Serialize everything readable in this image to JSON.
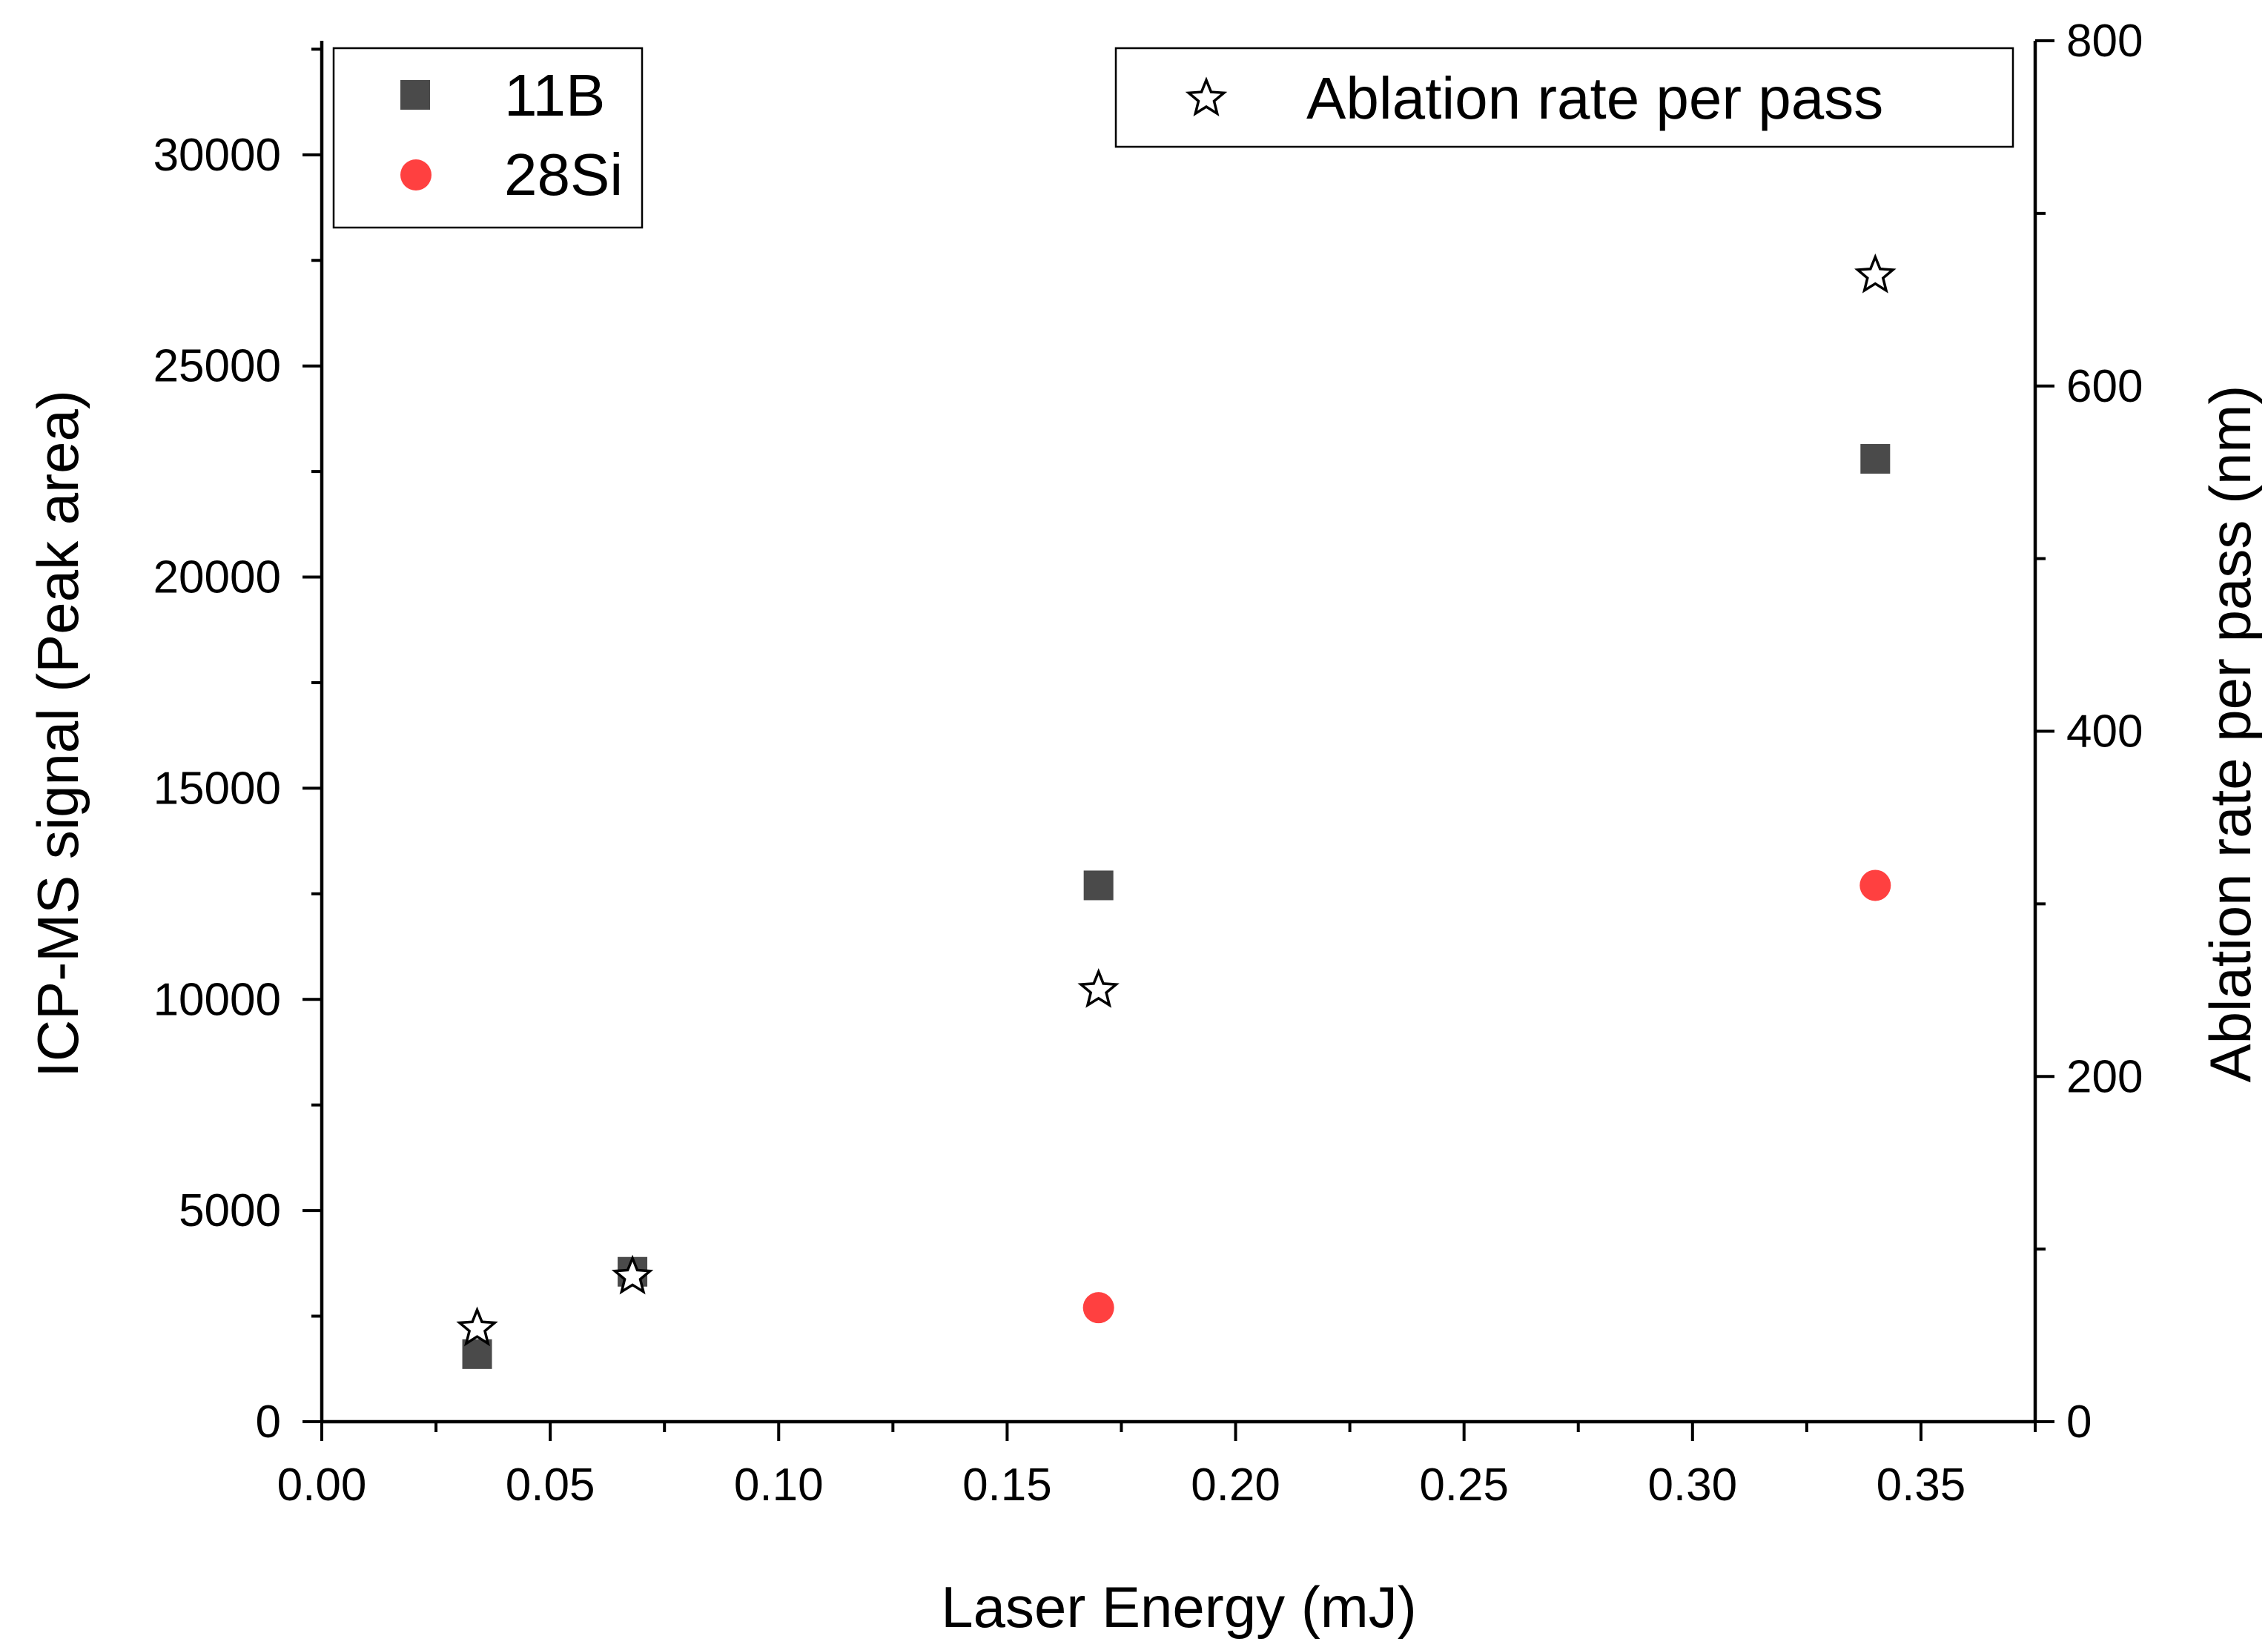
{
  "chart_data": {
    "type": "scatter",
    "x_axis": {
      "label": "Laser Energy (mJ)",
      "range": [
        0.0,
        0.375
      ],
      "ticks": [
        "0.00",
        "0.05",
        "0.10",
        "0.15",
        "0.20",
        "0.25",
        "0.30",
        "0.35"
      ]
    },
    "y_left": {
      "label": "ICP-MS signal (Peak area)",
      "range": [
        0,
        32700
      ],
      "ticks": [
        "0",
        "5000",
        "10000",
        "15000",
        "20000",
        "25000",
        "30000"
      ]
    },
    "y_right": {
      "label": "Ablation rate per pass (nm)",
      "range": [
        0,
        800
      ],
      "ticks": [
        "0",
        "200",
        "400",
        "600",
        "800"
      ]
    },
    "series": [
      {
        "name": "11B",
        "axis": "left",
        "marker": "square",
        "color": "#4a4a4a",
        "x": [
          0.034,
          0.068,
          0.17,
          0.34
        ],
        "y": [
          1600,
          3550,
          12700,
          22800
        ]
      },
      {
        "name": "28Si",
        "axis": "left",
        "marker": "circle",
        "color": "#ff4040",
        "x": [
          0.17,
          0.34
        ],
        "y": [
          2700,
          12700
        ]
      },
      {
        "name": "Ablation rate per pass",
        "axis": "right",
        "marker": "star",
        "color": "#ffffff",
        "x": [
          0.034,
          0.068,
          0.17,
          0.34
        ],
        "y": [
          54,
          84,
          250,
          664
        ]
      }
    ],
    "legend_left": [
      "11B",
      "28Si"
    ],
    "legend_right": [
      "Ablation rate per pass"
    ]
  }
}
